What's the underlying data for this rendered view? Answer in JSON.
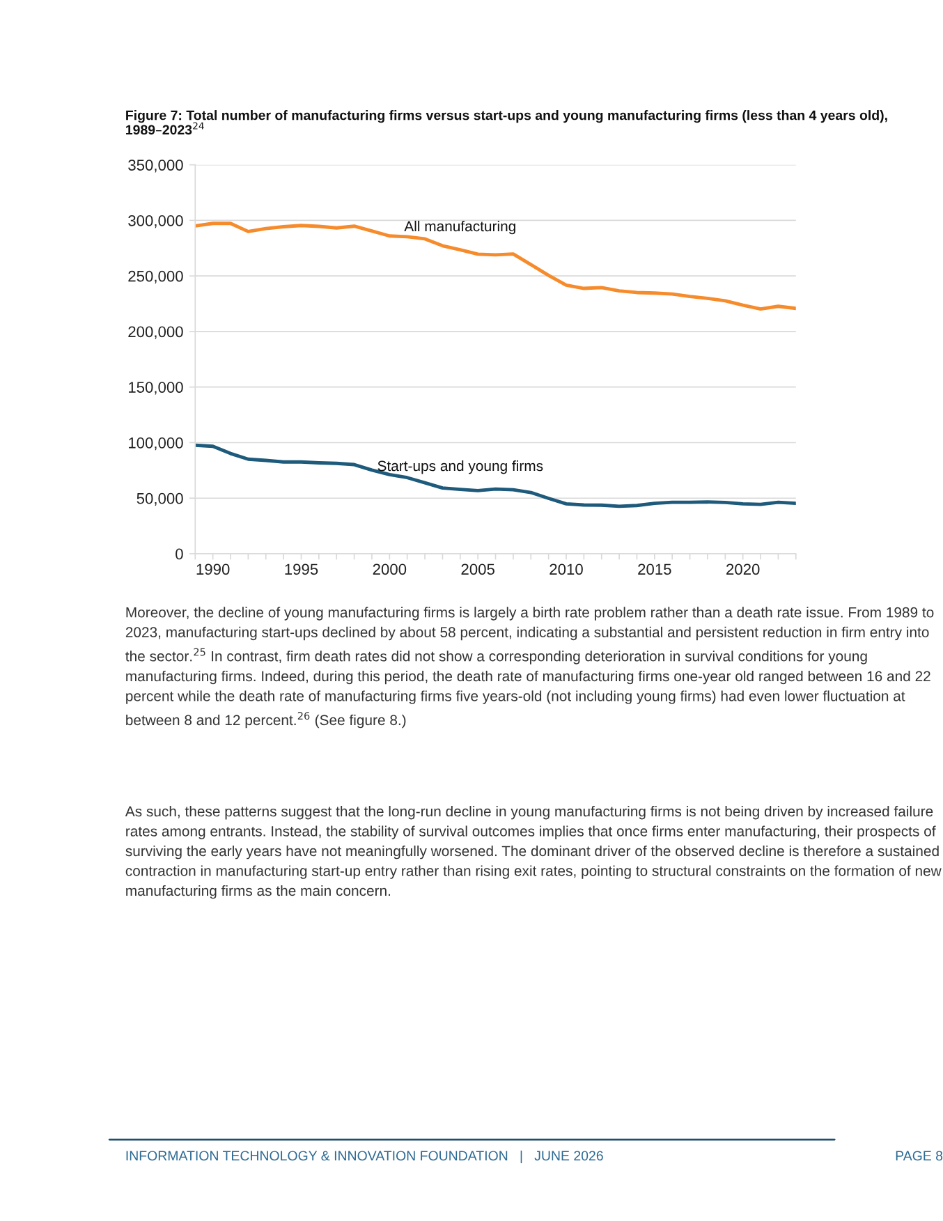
{
  "chart_data": {
    "type": "line",
    "title": "Figure 7: Total number of manufacturing firms versus start-ups and young manufacturing firms (less than 4 years old), 1989–2023$^{24}$",
    "x": [
      1989,
      1990,
      1991,
      1992,
      1993,
      1994,
      1995,
      1996,
      1997,
      1998,
      1999,
      2000,
      2001,
      2002,
      2003,
      2004,
      2005,
      2006,
      2007,
      2008,
      2009,
      2010,
      2011,
      2012,
      2013,
      2014,
      2015,
      2016,
      2017,
      2018,
      2019,
      2020,
      2021,
      2022,
      2023
    ],
    "series": [
      {
        "name": "All manufacturing",
        "color": "#f68b2c",
        "values": [
          295000,
          297300,
          297300,
          290000,
          292700,
          294300,
          295400,
          294600,
          293200,
          294800,
          290500,
          286000,
          285300,
          283400,
          277200,
          273600,
          269600,
          269000,
          269800,
          260200,
          250500,
          241700,
          238800,
          239500,
          236600,
          235100,
          234600,
          233700,
          231500,
          229800,
          227600,
          223700,
          220300,
          222700,
          220800
        ]
      },
      {
        "name": "Start-ups and young firms",
        "color": "#1d5a7b",
        "values": [
          97600,
          96700,
          90200,
          85100,
          84000,
          82600,
          82600,
          81800,
          81300,
          80200,
          75300,
          71200,
          68500,
          63900,
          59200,
          57900,
          56800,
          58200,
          57600,
          55100,
          49800,
          44900,
          43900,
          43700,
          42700,
          43400,
          45400,
          46300,
          46300,
          46600,
          46100,
          44900,
          44400,
          46300,
          45400
        ]
      }
    ],
    "xlim": [
      1989,
      2023
    ],
    "xticks": [
      {
        "value": 1989,
        "label": null
      },
      1990,
      {
        "value": 1991,
        "label": null
      },
      {
        "value": 1992,
        "label": null
      },
      {
        "value": 1993,
        "label": null
      },
      {
        "value": 1994,
        "label": null
      },
      1995,
      {
        "value": 1996,
        "label": null
      },
      {
        "value": 1997,
        "label": null
      },
      {
        "value": 1998,
        "label": null
      },
      {
        "value": 1999,
        "label": null
      },
      2000,
      {
        "value": 2001,
        "label": null
      },
      {
        "value": 2002,
        "label": null
      },
      {
        "value": 2003,
        "label": null
      },
      {
        "value": 2004,
        "label": null
      },
      2005,
      {
        "value": 2006,
        "label": null
      },
      {
        "value": 2007,
        "label": null
      },
      {
        "value": 2008,
        "label": null
      },
      {
        "value": 2009,
        "label": null
      },
      2010,
      {
        "value": 2011,
        "label": null
      },
      {
        "value": 2012,
        "label": null
      },
      {
        "value": 2013,
        "label": null
      },
      {
        "value": 2014,
        "label": null
      },
      2015,
      {
        "value": 2016,
        "label": null
      },
      {
        "value": 2017,
        "label": null
      },
      {
        "value": 2018,
        "label": null
      },
      {
        "value": 2019,
        "label": null
      },
      2020,
      {
        "value": 2021,
        "label": null
      },
      {
        "value": 2022,
        "label": null
      },
      {
        "value": 2023,
        "label": null
      }
    ],
    "ylim": [
      0,
      350000
    ],
    "yticks": [
      {
        "value": 0,
        "label": "0"
      },
      {
        "value": 50000,
        "label": "50,000"
      },
      {
        "value": 100000,
        "label": "100,000"
      },
      {
        "value": 150000,
        "label": "150,000"
      },
      {
        "value": 200000,
        "label": "200,000"
      },
      {
        "value": 250000,
        "label": "250,000"
      },
      {
        "value": 300000,
        "label": "300,000"
      },
      {
        "value": 350000,
        "label": "350,000"
      }
    ],
    "grid": "y",
    "legend": false,
    "line_style": "solid",
    "annotations": [
      "Moreover, the decline of young manufacturing firms is largely a birth rate problem rather than a death rate issue. From 1989 to 2023, manufacturing start-ups declined by about 58 percent, indicating a substantial and persistent reduction in firm entry into the sector.$^{25}$ In contrast, firm death rates did not show a corresponding deterioration in survival conditions for young manufacturing firms. Indeed, during this period, the death rate of manufacturing firms one-year old ranged between 16 and 22 percent while the death rate of manufacturing firms five years-old (not including young firms) had even lower fluctuation at between 8 and 12 percent.$^{26}$ (See figure 8.)",
      "As such, these patterns suggest that the long-run decline in young manufacturing firms is not being driven by increased failure rates among entrants. Instead, the stability of survival outcomes implies that once firms enter manufacturing, their prospects of surviving the early years have not meaningfully worsened. The dominant driver of the observed decline is therefore a sustained contraction in manufacturing start-up entry rather than rising exit rates, pointing to structural constraints on the formation of new manufacturing firms as the main concern.",
      "INFORMATION TECHNOLOGY & INNOVATION FOUNDATION   |   JUNE 2026",
      "PAGE 8"
    ]
  }
}
